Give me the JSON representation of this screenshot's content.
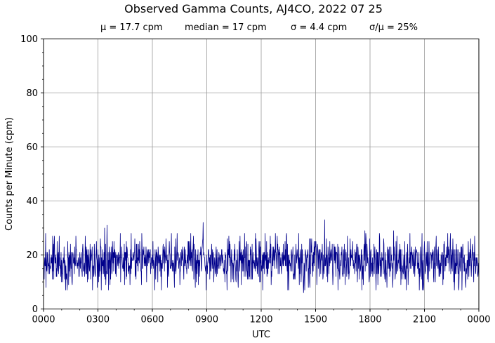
{
  "chart_data": {
    "type": "line",
    "title": "Observed Gamma Counts, AJ4CO, 2022 07 25",
    "subtitle_stats": [
      "μ = 17.7 cpm",
      "median = 17 cpm",
      "σ = 4.4 cpm",
      "σ/μ = 25%"
    ],
    "xlabel": "UTC",
    "ylabel": "Counts per Minute (cpm)",
    "x_tick_labels": [
      "0000",
      "0300",
      "0600",
      "0900",
      "1200",
      "1500",
      "1800",
      "2100",
      "0000"
    ],
    "y_tick_labels": [
      "0",
      "20",
      "40",
      "60",
      "80",
      "100"
    ],
    "y_ticks": [
      0,
      20,
      40,
      60,
      80,
      100
    ],
    "xlim_minutes": [
      0,
      1440
    ],
    "ylim": [
      0,
      100
    ],
    "grid": true,
    "series": [
      {
        "color": "#00008b",
        "sample_interval_minutes": 1,
        "mean": 17.7,
        "median": 17,
        "std": 4.4,
        "peaks": [
          {
            "minute": 202,
            "value": 30
          },
          {
            "minute": 210,
            "value": 31
          },
          {
            "minute": 528,
            "value": 32
          },
          {
            "minute": 930,
            "value": 33
          },
          {
            "minute": 1063,
            "value": 29
          },
          {
            "minute": 1158,
            "value": 29
          },
          {
            "minute": 1212,
            "value": 28
          }
        ],
        "troughs": [
          {
            "minute": 8,
            "value": 8
          },
          {
            "minute": 95,
            "value": 9
          },
          {
            "minute": 725,
            "value": 7
          },
          {
            "minute": 860,
            "value": 6
          },
          {
            "minute": 1100,
            "value": 7
          },
          {
            "minute": 1155,
            "value": 8
          }
        ]
      }
    ]
  }
}
